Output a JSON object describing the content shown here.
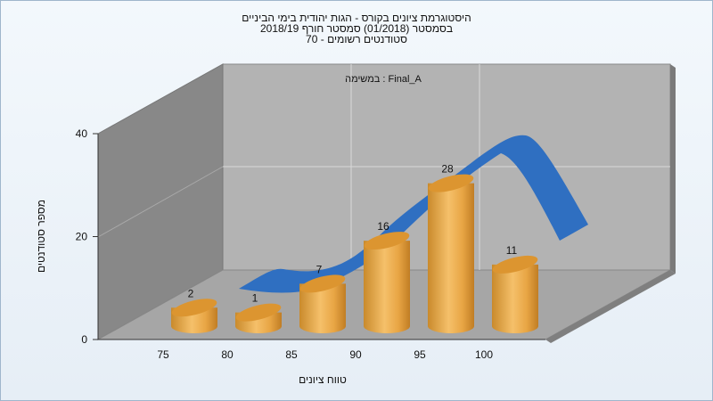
{
  "chart_data": {
    "type": "bar",
    "title_lines": [
      "היסטוגרמת ציונים בקורס - הגות יהודית בימי הביניים",
      "בסמסטר  (01/2018)  סמסטר חורף 2018/19",
      "סטודנטים רשומים - 70"
    ],
    "subtitle": "במשימה : Final_A",
    "xlabel": "טווח ציונים",
    "ylabel": "מספר סטודנטים",
    "categories": [
      "75",
      "80",
      "85",
      "90",
      "95",
      "100"
    ],
    "values": [
      2,
      1,
      7,
      16,
      28,
      11
    ],
    "value_labels": [
      "2",
      "1",
      "7",
      "16",
      "28",
      "11"
    ],
    "y_ticks": [
      "0",
      "20",
      "40"
    ],
    "ylim": [
      0,
      40
    ],
    "grid": true,
    "trend_curve": "normal distribution overlay (blue ribbon)",
    "colors": {
      "bar": "#e6a53e",
      "bar_top": "#dc9530",
      "curve": "#2f6fc1",
      "back_wall": "#b3b3b3",
      "side_wall": "#8a8a8a",
      "floor": "#a5a5a5"
    }
  }
}
